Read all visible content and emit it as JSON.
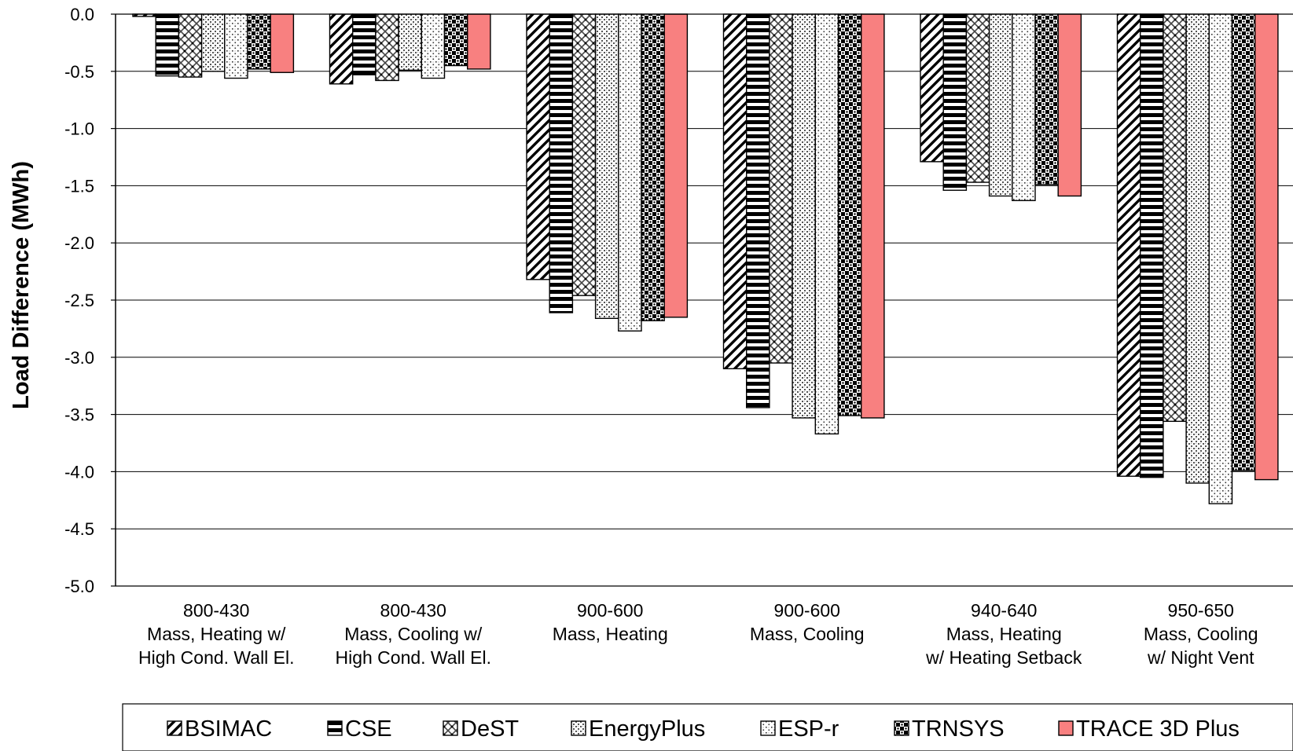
{
  "chart_data": {
    "type": "bar",
    "title": "",
    "xlabel": "",
    "ylabel": "Load Difference (MWh)",
    "ylim": [
      -5.0,
      0.0
    ],
    "ytick_step": 0.5,
    "grid": true,
    "legend_position": "bottom",
    "categories": [
      [
        "800-430",
        "Mass, Heating w/",
        "High Cond. Wall El."
      ],
      [
        "800-430",
        "Mass, Cooling w/",
        "High Cond. Wall El."
      ],
      [
        "900-600",
        "Mass, Heating"
      ],
      [
        "900-600",
        "Mass, Cooling"
      ],
      [
        "940-640",
        "Mass, Heating",
        "w/ Heating Setback"
      ],
      [
        "950-650",
        "Mass, Cooling",
        "w/ Night Vent"
      ]
    ],
    "series": [
      {
        "name": "BSIMAC",
        "pattern": "diag-bold",
        "values": [
          -0.02,
          -0.61,
          -2.32,
          -3.1,
          -1.29,
          -4.04
        ]
      },
      {
        "name": "CSE",
        "pattern": "horiz",
        "values": [
          -0.54,
          -0.53,
          -2.61,
          -3.44,
          -1.54,
          -4.05
        ]
      },
      {
        "name": "DeST",
        "pattern": "diamond",
        "values": [
          -0.55,
          -0.58,
          -2.46,
          -3.05,
          -1.47,
          -3.56
        ]
      },
      {
        "name": "EnergyPlus",
        "pattern": "grid-fine",
        "values": [
          -0.5,
          -0.49,
          -2.66,
          -3.53,
          -1.59,
          -4.1
        ]
      },
      {
        "name": "ESP-r",
        "pattern": "dots",
        "values": [
          -0.56,
          -0.56,
          -2.77,
          -3.67,
          -1.63,
          -4.28
        ]
      },
      {
        "name": "TRNSYS",
        "pattern": "checker",
        "values": [
          -0.48,
          -0.45,
          -2.68,
          -3.51,
          -1.49,
          -3.99
        ]
      },
      {
        "name": "TRACE 3D Plus",
        "pattern": "solid",
        "color": "#f88080",
        "values": [
          -0.51,
          -0.48,
          -2.65,
          -3.53,
          -1.59,
          -4.07
        ]
      }
    ]
  }
}
